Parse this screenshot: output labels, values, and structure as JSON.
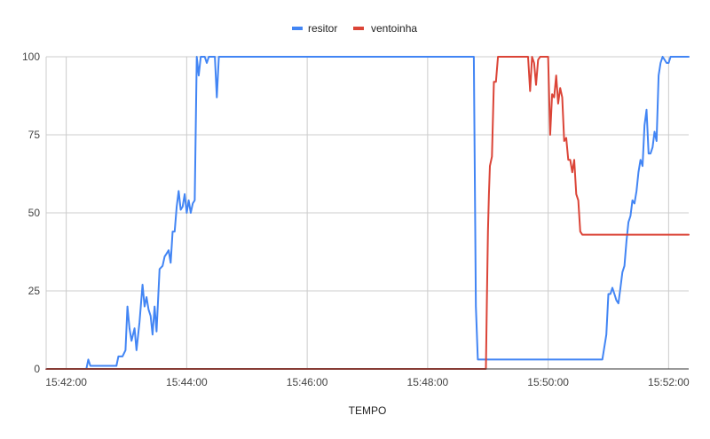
{
  "chart_data": {
    "type": "line",
    "title": "",
    "xlabel": "TEMPO",
    "ylabel": "",
    "x_type": "time",
    "xlim": [
      "15:41:40",
      "15:52:20"
    ],
    "ylim": [
      0,
      100
    ],
    "x_ticks": [
      "15:42:00",
      "15:44:00",
      "15:46:00",
      "15:48:00",
      "15:50:00",
      "15:52:00"
    ],
    "y_ticks": [
      0,
      25,
      50,
      75,
      100
    ],
    "grid": true,
    "legend_position": "top",
    "series": [
      {
        "name": "resitor",
        "color": "#4285f4",
        "points": [
          [
            "15:41:40",
            0
          ],
          [
            "15:42:20",
            0
          ],
          [
            "15:42:22",
            3
          ],
          [
            "15:42:24",
            1
          ],
          [
            "15:42:40",
            1
          ],
          [
            "15:42:50",
            1
          ],
          [
            "15:42:52",
            4
          ],
          [
            "15:42:56",
            4
          ],
          [
            "15:42:59",
            6
          ],
          [
            "15:43:01",
            20
          ],
          [
            "15:43:03",
            13
          ],
          [
            "15:43:05",
            9
          ],
          [
            "15:43:08",
            13
          ],
          [
            "15:43:10",
            6
          ],
          [
            "15:43:13",
            15
          ],
          [
            "15:43:16",
            27
          ],
          [
            "15:43:18",
            20
          ],
          [
            "15:43:20",
            23
          ],
          [
            "15:43:22",
            19
          ],
          [
            "15:43:24",
            17
          ],
          [
            "15:43:26",
            11
          ],
          [
            "15:43:28",
            20
          ],
          [
            "15:43:30",
            12
          ],
          [
            "15:43:33",
            32
          ],
          [
            "15:43:36",
            33
          ],
          [
            "15:43:38",
            36
          ],
          [
            "15:43:40",
            37
          ],
          [
            "15:43:42",
            38
          ],
          [
            "15:43:44",
            34
          ],
          [
            "15:43:46",
            44
          ],
          [
            "15:43:48",
            44
          ],
          [
            "15:43:50",
            52
          ],
          [
            "15:43:52",
            57
          ],
          [
            "15:43:54",
            51
          ],
          [
            "15:43:56",
            52
          ],
          [
            "15:43:58",
            56
          ],
          [
            "15:44:00",
            50
          ],
          [
            "15:44:02",
            54
          ],
          [
            "15:44:04",
            50
          ],
          [
            "15:44:06",
            53
          ],
          [
            "15:44:08",
            54
          ],
          [
            "15:44:10",
            100
          ],
          [
            "15:44:12",
            94
          ],
          [
            "15:44:14",
            100
          ],
          [
            "15:44:18",
            100
          ],
          [
            "15:44:20",
            98
          ],
          [
            "15:44:22",
            100
          ],
          [
            "15:44:28",
            100
          ],
          [
            "15:44:30",
            87
          ],
          [
            "15:44:32",
            100
          ],
          [
            "15:48:46",
            100
          ],
          [
            "15:48:48",
            20
          ],
          [
            "15:48:50",
            3
          ],
          [
            "15:50:50",
            3
          ],
          [
            "15:50:54",
            3
          ],
          [
            "15:50:58",
            11
          ],
          [
            "15:51:00",
            24
          ],
          [
            "15:51:02",
            24
          ],
          [
            "15:51:04",
            26
          ],
          [
            "15:51:06",
            24
          ],
          [
            "15:51:08",
            22
          ],
          [
            "15:51:10",
            21
          ],
          [
            "15:51:12",
            26
          ],
          [
            "15:51:14",
            31
          ],
          [
            "15:51:16",
            33
          ],
          [
            "15:51:18",
            41
          ],
          [
            "15:51:20",
            47
          ],
          [
            "15:51:22",
            49
          ],
          [
            "15:51:24",
            54
          ],
          [
            "15:51:26",
            53
          ],
          [
            "15:51:28",
            57
          ],
          [
            "15:51:30",
            63
          ],
          [
            "15:51:32",
            67
          ],
          [
            "15:51:34",
            65
          ],
          [
            "15:51:36",
            78
          ],
          [
            "15:51:38",
            83
          ],
          [
            "15:51:40",
            69
          ],
          [
            "15:51:42",
            69
          ],
          [
            "15:51:44",
            71
          ],
          [
            "15:51:46",
            76
          ],
          [
            "15:51:48",
            73
          ],
          [
            "15:51:50",
            94
          ],
          [
            "15:51:52",
            98
          ],
          [
            "15:51:54",
            100
          ],
          [
            "15:51:56",
            99
          ],
          [
            "15:51:58",
            98
          ],
          [
            "15:52:00",
            98
          ],
          [
            "15:52:02",
            100
          ],
          [
            "15:52:20",
            100
          ]
        ]
      },
      {
        "name": "ventoinha",
        "color": "#db4437",
        "points": [
          [
            "15:41:40",
            0
          ],
          [
            "15:48:58",
            0
          ],
          [
            "15:48:59",
            22
          ],
          [
            "15:49:00",
            44
          ],
          [
            "15:49:01",
            56
          ],
          [
            "15:49:02",
            65
          ],
          [
            "15:49:04",
            68
          ],
          [
            "15:49:06",
            92
          ],
          [
            "15:49:08",
            92
          ],
          [
            "15:49:10",
            100
          ],
          [
            "15:49:40",
            100
          ],
          [
            "15:49:42",
            89
          ],
          [
            "15:49:44",
            100
          ],
          [
            "15:49:46",
            98
          ],
          [
            "15:49:48",
            91
          ],
          [
            "15:49:50",
            99
          ],
          [
            "15:49:52",
            100
          ],
          [
            "15:50:00",
            100
          ],
          [
            "15:50:02",
            75
          ],
          [
            "15:50:04",
            88
          ],
          [
            "15:50:06",
            87
          ],
          [
            "15:50:08",
            94
          ],
          [
            "15:50:10",
            85
          ],
          [
            "15:50:12",
            90
          ],
          [
            "15:50:14",
            87
          ],
          [
            "15:50:16",
            73
          ],
          [
            "15:50:18",
            74
          ],
          [
            "15:50:20",
            67
          ],
          [
            "15:50:22",
            67
          ],
          [
            "15:50:24",
            63
          ],
          [
            "15:50:26",
            67
          ],
          [
            "15:50:28",
            56
          ],
          [
            "15:50:30",
            54
          ],
          [
            "15:50:32",
            44
          ],
          [
            "15:50:34",
            43
          ],
          [
            "15:52:20",
            43
          ]
        ]
      }
    ]
  }
}
